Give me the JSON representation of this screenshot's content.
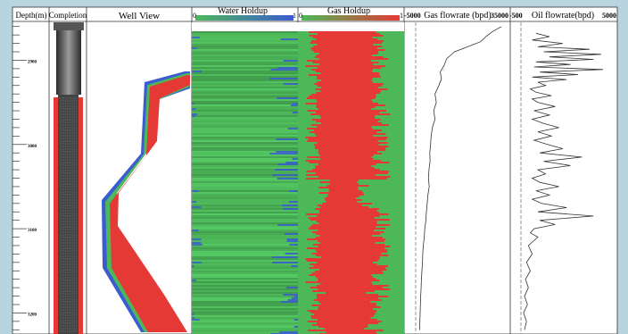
{
  "panel_titles": {
    "depth": "Depth(m)",
    "completion": "Completion",
    "well_view": "Well View",
    "water_holdup": "Water Holdup",
    "gas_holdup": "Gas Holdup",
    "gas_flowrate": "Gas flowrate (bpd)",
    "oil_flowrate": "Oil flowrate(bpd)"
  },
  "scales": {
    "water_min": "0",
    "water_max": "1",
    "gas_holdup_min": "0",
    "gas_holdup_max": "1",
    "gas_flow_min": "-5000",
    "gas_flow_max": "35000",
    "oil_flow_min": "-500",
    "oil_flow_max": "5000"
  },
  "colors": {
    "background": "#b8d4df",
    "water": "#3b5bd1",
    "oil_green": "#4db85a",
    "gas_red": "#e53935",
    "tubing_gray": "#6a6a6a",
    "perforation_red": "#e53935"
  },
  "chart_data": [
    {
      "type": "table",
      "title": "",
      "tracks": [
        "Depth(m)",
        "Completion",
        "Well View",
        "Water Holdup",
        "Gas Holdup",
        "Gas flowrate (bpd)",
        "Oil flowrate(bpd)"
      ],
      "depth_axis": {
        "ticks": [
          "2900",
          "3000",
          "3100",
          "3200"
        ],
        "range": [
          2855,
          3225
        ],
        "inverted": true
      },
      "completion": {
        "tubing_bottom_depth": 2928,
        "perforated_interval": [
          2932,
          3225
        ]
      }
    },
    {
      "type": "heatmap",
      "title": "Water Holdup",
      "xlim": [
        0,
        1
      ],
      "note_colors": [
        "green",
        "blue"
      ],
      "depth_range": [
        2868,
        3225
      ]
    },
    {
      "type": "heatmap",
      "title": "Gas Holdup",
      "xlim": [
        0,
        1
      ],
      "note_colors": [
        "green",
        "red"
      ],
      "depth_range": [
        2868,
        3225
      ]
    },
    {
      "type": "line",
      "title": "Gas flowrate (bpd)",
      "xlim": [
        -5000,
        35000
      ],
      "y": [
        2860,
        2866,
        2872,
        2878,
        2884,
        2890,
        2898,
        2906,
        2914,
        2922,
        2930,
        2940,
        2950,
        2960,
        2970,
        2980,
        2990,
        3000,
        3010,
        3020,
        3030,
        3040,
        3050,
        3060,
        3070,
        3080,
        3090,
        3100,
        3110,
        3120,
        3130,
        3140,
        3150,
        3160,
        3170,
        3180,
        3190,
        3200,
        3210,
        3220
      ],
      "x": [
        32000,
        28500,
        26000,
        24000,
        19000,
        14000,
        11000,
        10000,
        8500,
        9000,
        8000,
        6500,
        7000,
        6000,
        6500,
        5500,
        5000,
        4800,
        4500,
        4600,
        4200,
        4000,
        4300,
        3800,
        3500,
        3200,
        3000,
        2600,
        2400,
        2000,
        1800,
        1700,
        1500,
        1300,
        1200,
        1000,
        900,
        800,
        700,
        600
      ]
    },
    {
      "type": "line",
      "title": "Oil flowrate(bpd)",
      "xlim": [
        -500,
        5000
      ],
      "y": [
        2868,
        2872,
        2876,
        2880,
        2884,
        2887,
        2890,
        2893,
        2896,
        2899,
        2902,
        2905,
        2908,
        2911,
        2914,
        2917,
        2920,
        2923,
        2926,
        2930,
        2934,
        2938,
        2942,
        2946,
        2950,
        2955,
        2960,
        2965,
        2970,
        2975,
        2980,
        2985,
        2990,
        2995,
        3000,
        3005,
        3010,
        3015,
        3020,
        3025,
        3030,
        3035,
        3040,
        3045,
        3050,
        3055,
        3060,
        3065,
        3070,
        3075,
        3080,
        3085,
        3090,
        3095,
        3100,
        3105,
        3110,
        3120,
        3130,
        3140,
        3150,
        3160,
        3170,
        3180,
        3190,
        3200,
        3210,
        3220
      ],
      "x": [
        800,
        1500,
        600,
        2200,
        900,
        3600,
        1200,
        4200,
        1500,
        3800,
        800,
        2600,
        700,
        4300,
        1000,
        3000,
        600,
        2400,
        900,
        1300,
        500,
        800,
        1600,
        600,
        900,
        1800,
        700,
        1500,
        600,
        1200,
        2000,
        900,
        1600,
        700,
        1400,
        2200,
        1000,
        3200,
        1200,
        2600,
        900,
        1300,
        600,
        1000,
        2000,
        800,
        1500,
        600,
        1100,
        2400,
        900,
        3800,
        1000,
        1800,
        700,
        500,
        900,
        400,
        600,
        300,
        500,
        250,
        400,
        200,
        350,
        150,
        300,
        200
      ]
    }
  ]
}
